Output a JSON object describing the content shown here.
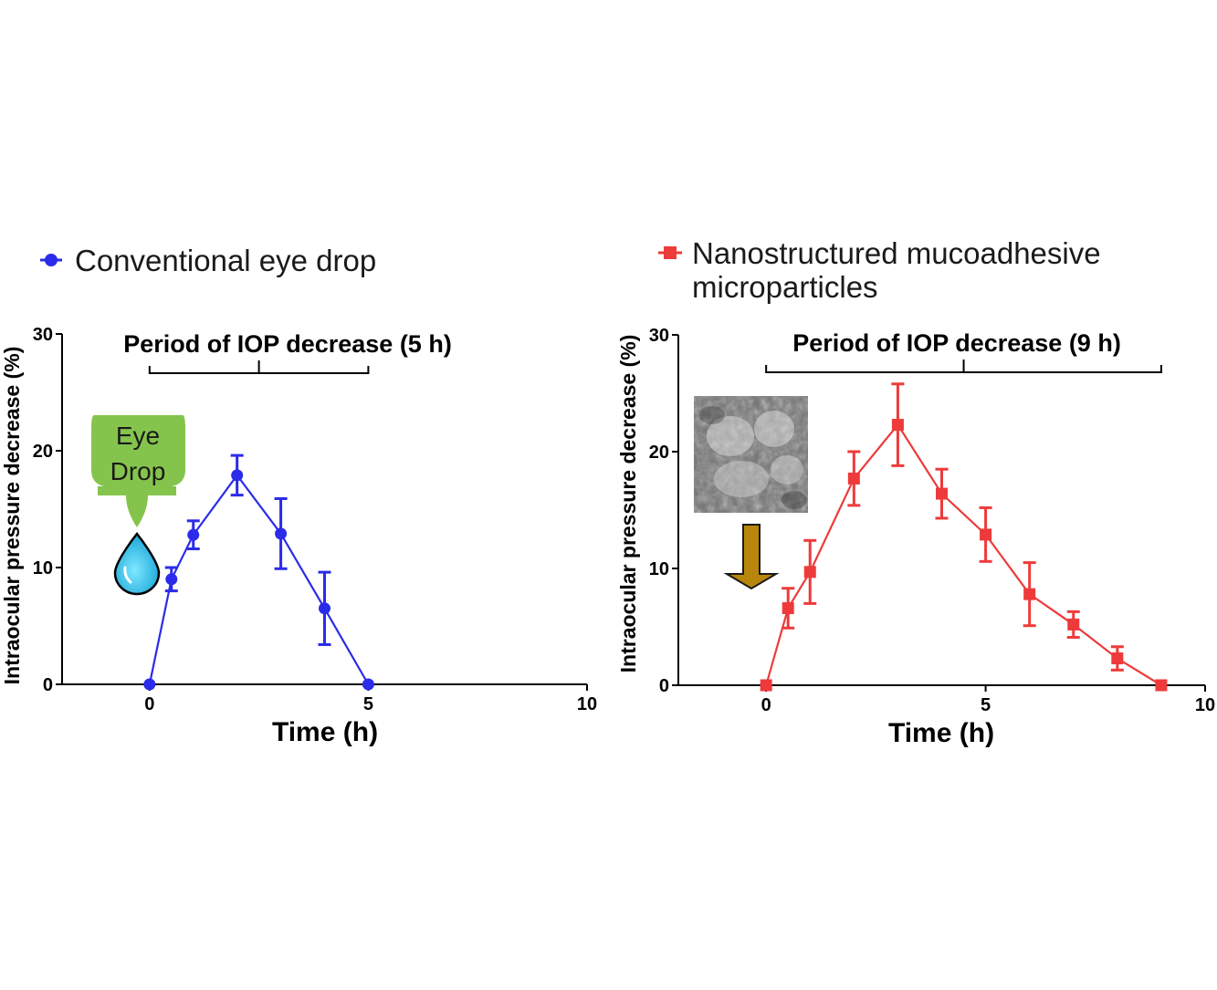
{
  "chart_data": [
    {
      "type": "line",
      "legend": "Conventional eye drop",
      "color": "#2b2bea",
      "marker": "circle",
      "xlabel": "Time  (h)",
      "ylabel": "Intraocular pressure decrease (%)",
      "xlim": [
        -2,
        10
      ],
      "ylim": [
        0,
        30
      ],
      "xticks": [
        0,
        5,
        10
      ],
      "yticks": [
        0,
        10,
        20,
        30
      ],
      "annotation": "Period of IOP decrease (5 h)",
      "bracket_x": [
        0,
        5
      ],
      "icon": {
        "name": "eye-drop-bottle-icon",
        "label_line1": "Eye",
        "label_line2": "Drop"
      },
      "series": [
        {
          "x": [
            0,
            0.5,
            1,
            2,
            3,
            4,
            5
          ],
          "y": [
            0,
            9,
            12.8,
            17.9,
            12.9,
            6.5,
            0
          ],
          "err": [
            0,
            1.0,
            1.2,
            1.7,
            3.0,
            3.1,
            0
          ]
        }
      ]
    },
    {
      "type": "line",
      "legend_line1": "Nanostructured mucoadhesive",
      "legend_line2": "microparticles",
      "color": "#ee3a3a",
      "marker": "square",
      "xlabel": "Time  (h)",
      "ylabel": "Intraocular pressure decrease (%)",
      "xlim": [
        -2,
        10
      ],
      "ylim": [
        0,
        30
      ],
      "xticks": [
        0,
        5,
        10
      ],
      "yticks": [
        0,
        10,
        20,
        30
      ],
      "annotation": "Period of IOP decrease (9 h)",
      "bracket_x": [
        0,
        9
      ],
      "icon": {
        "name": "microparticle-sem-image",
        "arrow": "down-arrow-icon"
      },
      "series": [
        {
          "x": [
            0,
            0.5,
            1,
            2,
            3,
            4,
            5,
            6,
            7,
            8,
            9
          ],
          "y": [
            0,
            6.6,
            9.7,
            17.7,
            22.3,
            16.4,
            12.9,
            7.8,
            5.2,
            2.3,
            0
          ],
          "err": [
            0,
            1.7,
            2.7,
            2.3,
            3.5,
            2.1,
            2.3,
            2.7,
            1.1,
            1.0,
            0
          ]
        }
      ]
    }
  ]
}
